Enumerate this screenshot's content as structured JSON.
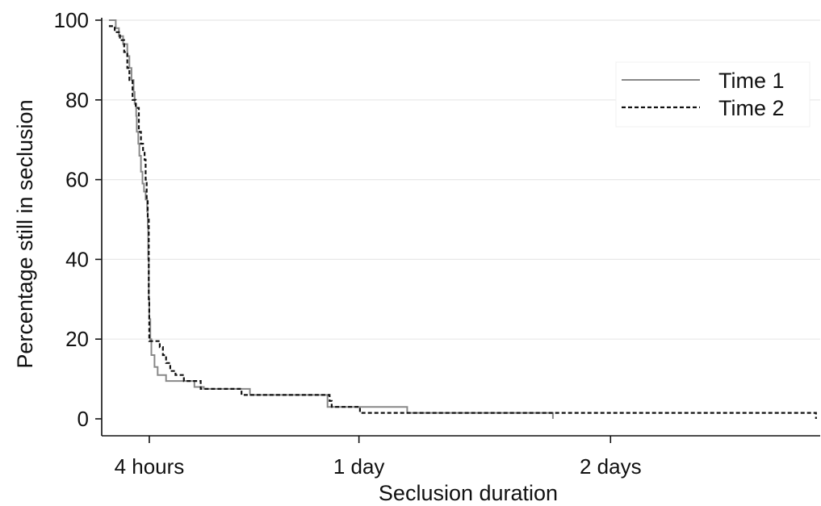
{
  "chart_data": {
    "type": "line",
    "xlabel": "Seclusion duration",
    "ylabel": "Percentage still in seclusion",
    "x_unit": "hours",
    "xlim": [
      0,
      68
    ],
    "ylim": [
      0,
      100
    ],
    "x_ticks": [
      {
        "value": 4,
        "label": "4 hours"
      },
      {
        "value": 24,
        "label": "1 day"
      },
      {
        "value": 48,
        "label": "2 days"
      }
    ],
    "y_ticks": [
      {
        "value": 0,
        "label": "0"
      },
      {
        "value": 20,
        "label": "20"
      },
      {
        "value": 40,
        "label": "40"
      },
      {
        "value": 60,
        "label": "60"
      },
      {
        "value": 80,
        "label": "80"
      },
      {
        "value": 100,
        "label": "100"
      }
    ],
    "grid": "horizontal",
    "legend_position": "top-right",
    "series": [
      {
        "name": "Time 1",
        "style": "solid",
        "color": "#888888",
        "points": [
          [
            0.15,
            100
          ],
          [
            0.8,
            100
          ],
          [
            0.8,
            98
          ],
          [
            1.1,
            98
          ],
          [
            1.1,
            96
          ],
          [
            1.5,
            96
          ],
          [
            1.5,
            94
          ],
          [
            1.9,
            94
          ],
          [
            1.9,
            91
          ],
          [
            2.1,
            91
          ],
          [
            2.1,
            88
          ],
          [
            2.3,
            88
          ],
          [
            2.3,
            85
          ],
          [
            2.5,
            85
          ],
          [
            2.5,
            82
          ],
          [
            2.6,
            82
          ],
          [
            2.6,
            79
          ],
          [
            2.75,
            79
          ],
          [
            2.75,
            76
          ],
          [
            2.8,
            76
          ],
          [
            2.8,
            72
          ],
          [
            2.95,
            72
          ],
          [
            2.95,
            69
          ],
          [
            3.05,
            69
          ],
          [
            3.05,
            66
          ],
          [
            3.2,
            66
          ],
          [
            3.2,
            62
          ],
          [
            3.35,
            62
          ],
          [
            3.35,
            59
          ],
          [
            3.5,
            59
          ],
          [
            3.5,
            57
          ],
          [
            3.65,
            57
          ],
          [
            3.65,
            55
          ],
          [
            3.8,
            55
          ],
          [
            3.8,
            52
          ],
          [
            3.85,
            52
          ],
          [
            3.85,
            48
          ],
          [
            3.9,
            48
          ],
          [
            3.9,
            40
          ],
          [
            3.95,
            40
          ],
          [
            3.95,
            30
          ],
          [
            4.0,
            30
          ],
          [
            4.0,
            25
          ],
          [
            4.1,
            25
          ],
          [
            4.1,
            20
          ],
          [
            4.2,
            20
          ],
          [
            4.2,
            16
          ],
          [
            4.5,
            16
          ],
          [
            4.5,
            13
          ],
          [
            4.8,
            13
          ],
          [
            4.8,
            11
          ],
          [
            5.6,
            11
          ],
          [
            5.6,
            9.5
          ],
          [
            8.3,
            9.5
          ],
          [
            8.3,
            8
          ],
          [
            9.2,
            8
          ],
          [
            9.2,
            7.5
          ],
          [
            13.6,
            7.5
          ],
          [
            13.6,
            6
          ],
          [
            21.0,
            6
          ],
          [
            21.0,
            3
          ],
          [
            28.6,
            3
          ],
          [
            28.6,
            1.5
          ],
          [
            42.5,
            1.5
          ],
          [
            42.5,
            0
          ]
        ]
      },
      {
        "name": "Time 2",
        "style": "dashed",
        "color": "#111111",
        "points": [
          [
            0.15,
            98.5
          ],
          [
            0.7,
            98.5
          ],
          [
            0.7,
            97
          ],
          [
            1.2,
            97
          ],
          [
            1.2,
            95
          ],
          [
            1.6,
            95
          ],
          [
            1.6,
            92
          ],
          [
            1.9,
            92
          ],
          [
            1.9,
            88
          ],
          [
            2.1,
            88
          ],
          [
            2.1,
            85
          ],
          [
            2.4,
            85
          ],
          [
            2.4,
            80
          ],
          [
            2.7,
            80
          ],
          [
            2.7,
            78
          ],
          [
            3.0,
            78
          ],
          [
            3.0,
            72
          ],
          [
            3.2,
            72
          ],
          [
            3.2,
            69
          ],
          [
            3.4,
            69
          ],
          [
            3.4,
            67
          ],
          [
            3.55,
            67
          ],
          [
            3.55,
            65
          ],
          [
            3.65,
            65
          ],
          [
            3.65,
            60
          ],
          [
            3.75,
            60
          ],
          [
            3.75,
            55
          ],
          [
            3.85,
            55
          ],
          [
            3.85,
            50
          ],
          [
            3.95,
            50
          ],
          [
            3.95,
            30
          ],
          [
            4.0,
            30
          ],
          [
            4.0,
            19.5
          ],
          [
            5.0,
            19.5
          ],
          [
            5.0,
            18
          ],
          [
            5.3,
            18
          ],
          [
            5.3,
            16
          ],
          [
            5.6,
            16
          ],
          [
            5.6,
            14
          ],
          [
            6.0,
            14
          ],
          [
            6.0,
            12
          ],
          [
            6.5,
            12
          ],
          [
            6.5,
            11
          ],
          [
            7.3,
            11
          ],
          [
            7.3,
            9.5
          ],
          [
            8.9,
            9.5
          ],
          [
            8.9,
            7.5
          ],
          [
            12.8,
            7.5
          ],
          [
            12.8,
            6
          ],
          [
            21.2,
            6
          ],
          [
            21.2,
            4.5
          ],
          [
            21.4,
            4.5
          ],
          [
            21.4,
            3
          ],
          [
            24.1,
            3
          ],
          [
            24.1,
            1.5
          ],
          [
            67.6,
            1.5
          ],
          [
            67.6,
            0
          ]
        ]
      }
    ]
  }
}
